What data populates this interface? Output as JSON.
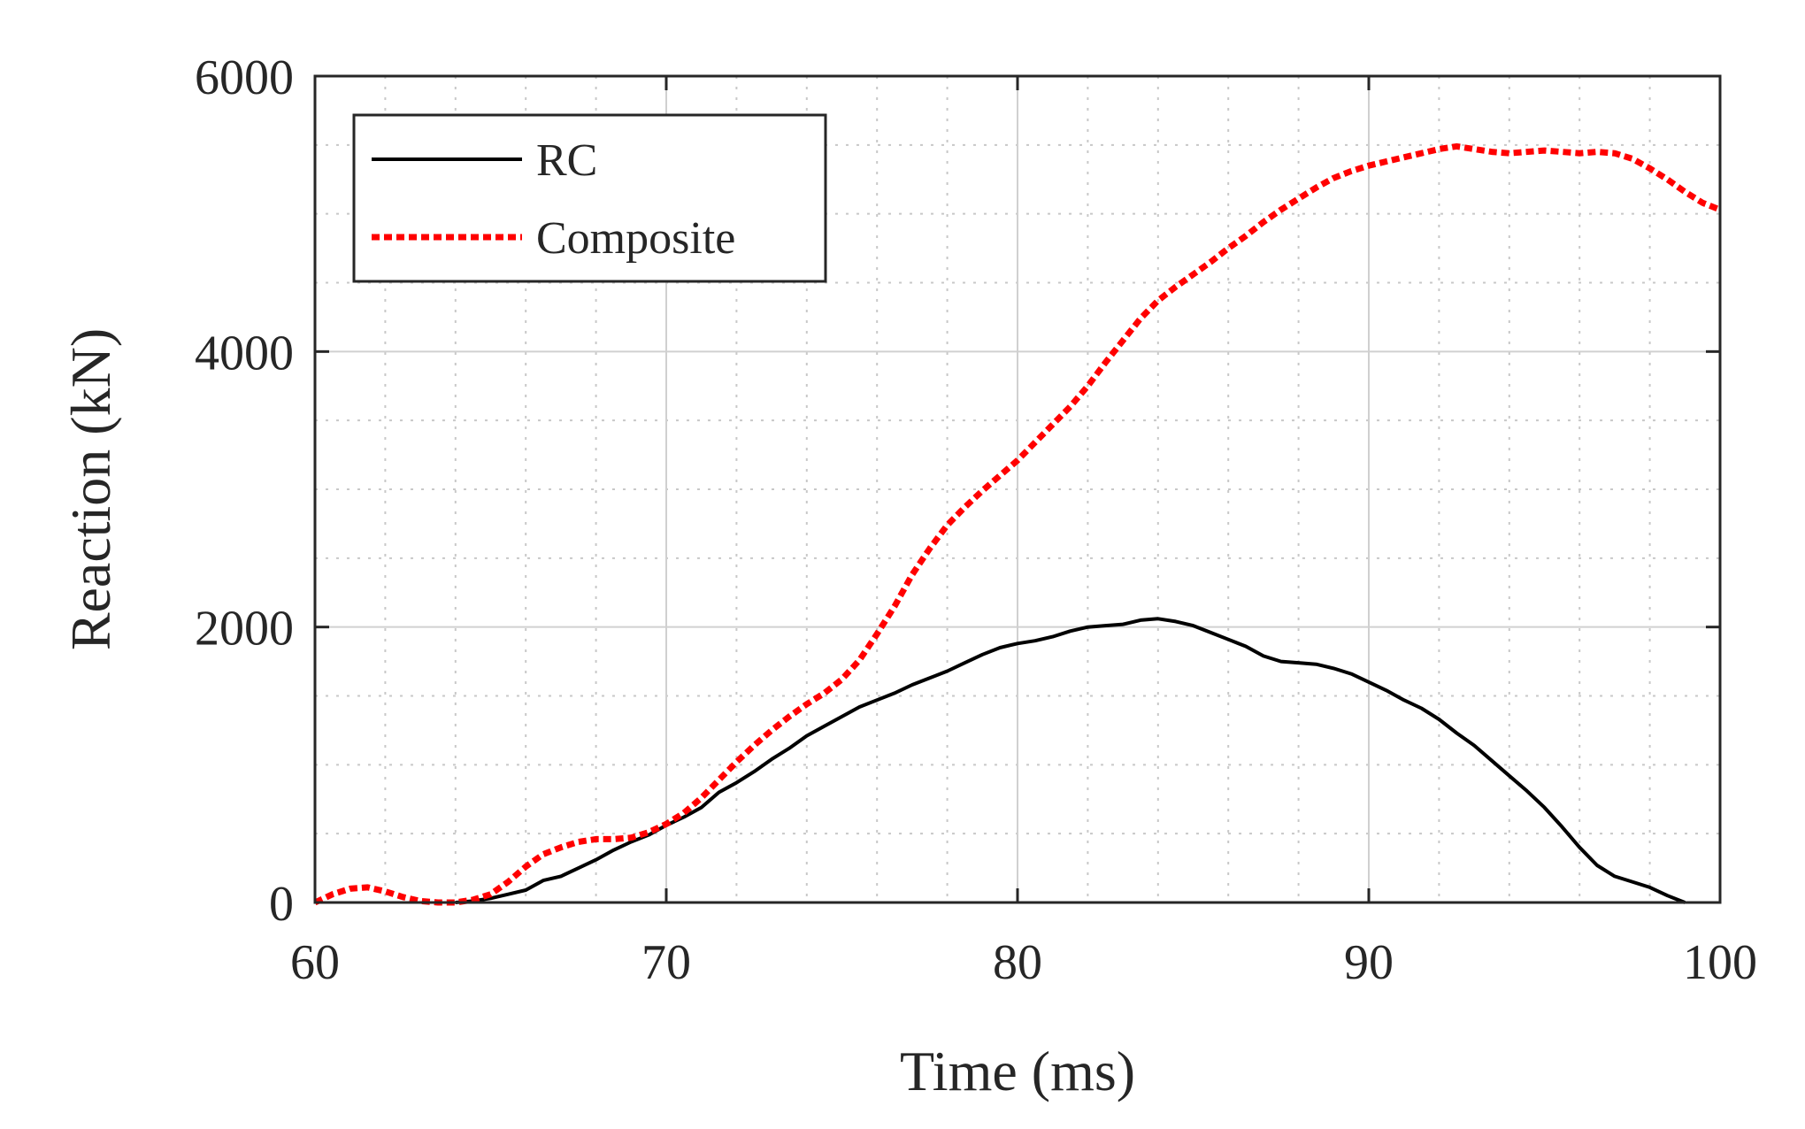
{
  "chart_data": {
    "type": "line",
    "title": "",
    "xlabel": "Time (ms)",
    "ylabel": "Reaction (kN)",
    "xlim": [
      60,
      100
    ],
    "ylim": [
      0,
      6000
    ],
    "xticks": [
      60,
      70,
      80,
      90,
      100
    ],
    "yticks": [
      0,
      2000,
      4000,
      6000
    ],
    "xtick_labels": [
      "60",
      "70",
      "80",
      "90",
      "100"
    ],
    "ytick_labels": [
      "0",
      "2000",
      "4000",
      "6000"
    ],
    "xminor_step": 2,
    "yminor_step": 500,
    "grid": true,
    "legend_position": "top-left",
    "series": [
      {
        "name": "RC",
        "color": "#000000",
        "style": "solid",
        "x": [
          64.0,
          64.5,
          65.0,
          65.5,
          66.0,
          66.5,
          67.0,
          67.5,
          68.0,
          68.5,
          69.0,
          69.5,
          70.0,
          70.5,
          71.0,
          71.5,
          72.0,
          72.5,
          73.0,
          73.5,
          74.0,
          74.5,
          75.0,
          75.5,
          76.0,
          76.5,
          77.0,
          77.5,
          78.0,
          78.5,
          79.0,
          79.5,
          80.0,
          80.5,
          81.0,
          81.5,
          82.0,
          82.5,
          83.0,
          83.5,
          84.0,
          84.5,
          85.0,
          85.5,
          86.0,
          86.5,
          87.0,
          87.5,
          88.0,
          88.5,
          89.0,
          89.5,
          90.0,
          90.5,
          91.0,
          91.5,
          92.0,
          92.5,
          93.0,
          93.5,
          94.0,
          94.5,
          95.0,
          95.5,
          96.0,
          96.5,
          97.0,
          97.5,
          98.0,
          98.5,
          99.0
        ],
        "values": [
          0,
          10,
          30,
          60,
          90,
          160,
          190,
          250,
          310,
          380,
          440,
          490,
          560,
          620,
          690,
          800,
          870,
          950,
          1040,
          1120,
          1210,
          1280,
          1350,
          1420,
          1470,
          1520,
          1580,
          1630,
          1680,
          1740,
          1800,
          1850,
          1880,
          1900,
          1930,
          1970,
          2000,
          2010,
          2020,
          2050,
          2060,
          2040,
          2010,
          1960,
          1910,
          1860,
          1790,
          1750,
          1740,
          1730,
          1700,
          1660,
          1600,
          1540,
          1470,
          1410,
          1330,
          1230,
          1140,
          1030,
          920,
          810,
          690,
          550,
          400,
          270,
          190,
          150,
          110,
          50,
          0
        ]
      },
      {
        "name": "Composite",
        "color": "#ff0000",
        "style": "dotted",
        "x": [
          60.0,
          60.5,
          61.0,
          61.5,
          62.0,
          62.5,
          63.0,
          63.5,
          64.0,
          64.5,
          65.0,
          65.5,
          66.0,
          66.5,
          67.0,
          67.5,
          68.0,
          68.5,
          69.0,
          69.5,
          70.0,
          70.5,
          71.0,
          71.5,
          72.0,
          72.5,
          73.0,
          73.5,
          74.0,
          74.5,
          75.0,
          75.5,
          76.0,
          76.5,
          77.0,
          77.5,
          78.0,
          78.5,
          79.0,
          79.5,
          80.0,
          80.5,
          81.0,
          81.5,
          82.0,
          82.5,
          83.0,
          83.5,
          84.0,
          84.5,
          85.0,
          85.5,
          86.0,
          86.5,
          87.0,
          87.5,
          88.0,
          88.5,
          89.0,
          89.5,
          90.0,
          90.5,
          91.0,
          91.5,
          92.0,
          92.5,
          93.0,
          93.5,
          94.0,
          94.5,
          95.0,
          95.5,
          96.0,
          96.5,
          97.0,
          97.5,
          98.0,
          98.5,
          99.0,
          99.5,
          100.0
        ],
        "values": [
          0,
          60,
          100,
          110,
          80,
          40,
          10,
          0,
          0,
          20,
          60,
          150,
          260,
          350,
          400,
          440,
          460,
          460,
          470,
          510,
          570,
          650,
          760,
          890,
          1020,
          1140,
          1250,
          1350,
          1440,
          1520,
          1620,
          1760,
          1950,
          2150,
          2380,
          2570,
          2740,
          2870,
          2990,
          3100,
          3210,
          3340,
          3470,
          3600,
          3750,
          3920,
          4080,
          4240,
          4370,
          4470,
          4560,
          4650,
          4750,
          4840,
          4940,
          5030,
          5110,
          5190,
          5260,
          5310,
          5350,
          5380,
          5410,
          5440,
          5470,
          5490,
          5470,
          5450,
          5440,
          5450,
          5460,
          5450,
          5440,
          5450,
          5440,
          5400,
          5330,
          5250,
          5160,
          5080,
          5030
        ]
      }
    ]
  }
}
